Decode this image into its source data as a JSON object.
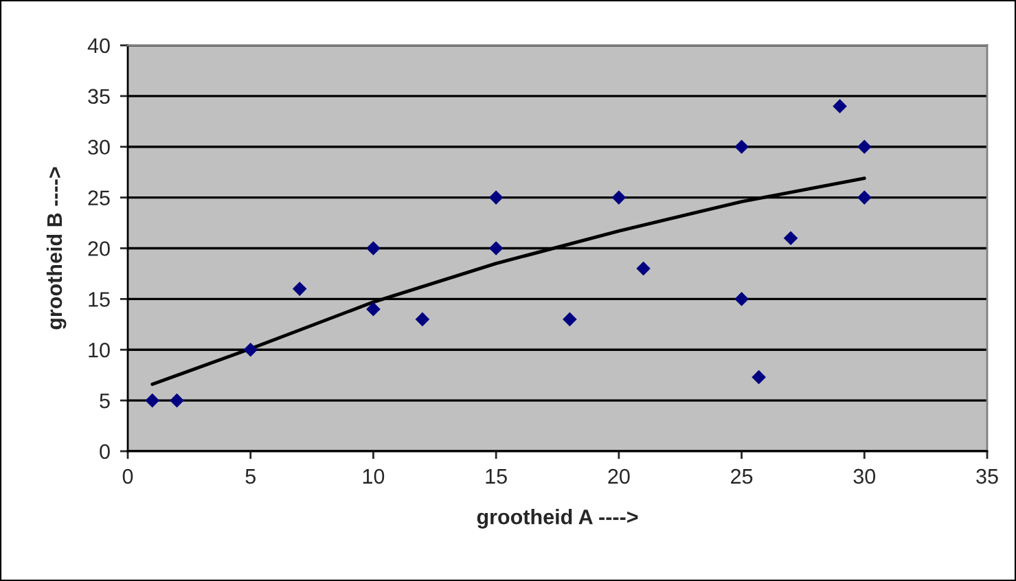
{
  "chart_data": {
    "type": "scatter",
    "xlabel": "grootheid A ---->",
    "ylabel": "grootheid B ---->",
    "series": [
      {
        "color": "#000080",
        "marker": "diamond",
        "x": [
          1,
          2,
          5,
          7,
          10,
          10,
          12,
          15,
          15,
          18,
          20,
          21,
          25,
          25,
          25.7,
          27,
          29,
          30,
          30
        ],
        "values": [
          5,
          5,
          10,
          16,
          20,
          14,
          13,
          25,
          20,
          13,
          25,
          18,
          30,
          15,
          7.3,
          21,
          34,
          30,
          25
        ]
      },
      {
        "type": "line",
        "color": "#000000",
        "marker": "none",
        "line_style": "solid",
        "x": [
          1,
          5,
          10,
          15,
          20,
          25,
          30
        ],
        "values": [
          6.6,
          10.1,
          14.7,
          18.5,
          21.7,
          24.6,
          26.9
        ]
      }
    ],
    "xlim": [
      0,
      35
    ],
    "xticks": [
      0,
      5,
      10,
      15,
      20,
      25,
      30,
      35
    ],
    "ylim": [
      0,
      40
    ],
    "yticks": [
      0,
      5,
      10,
      15,
      20,
      25,
      30,
      35,
      40
    ],
    "grid": "y"
  }
}
